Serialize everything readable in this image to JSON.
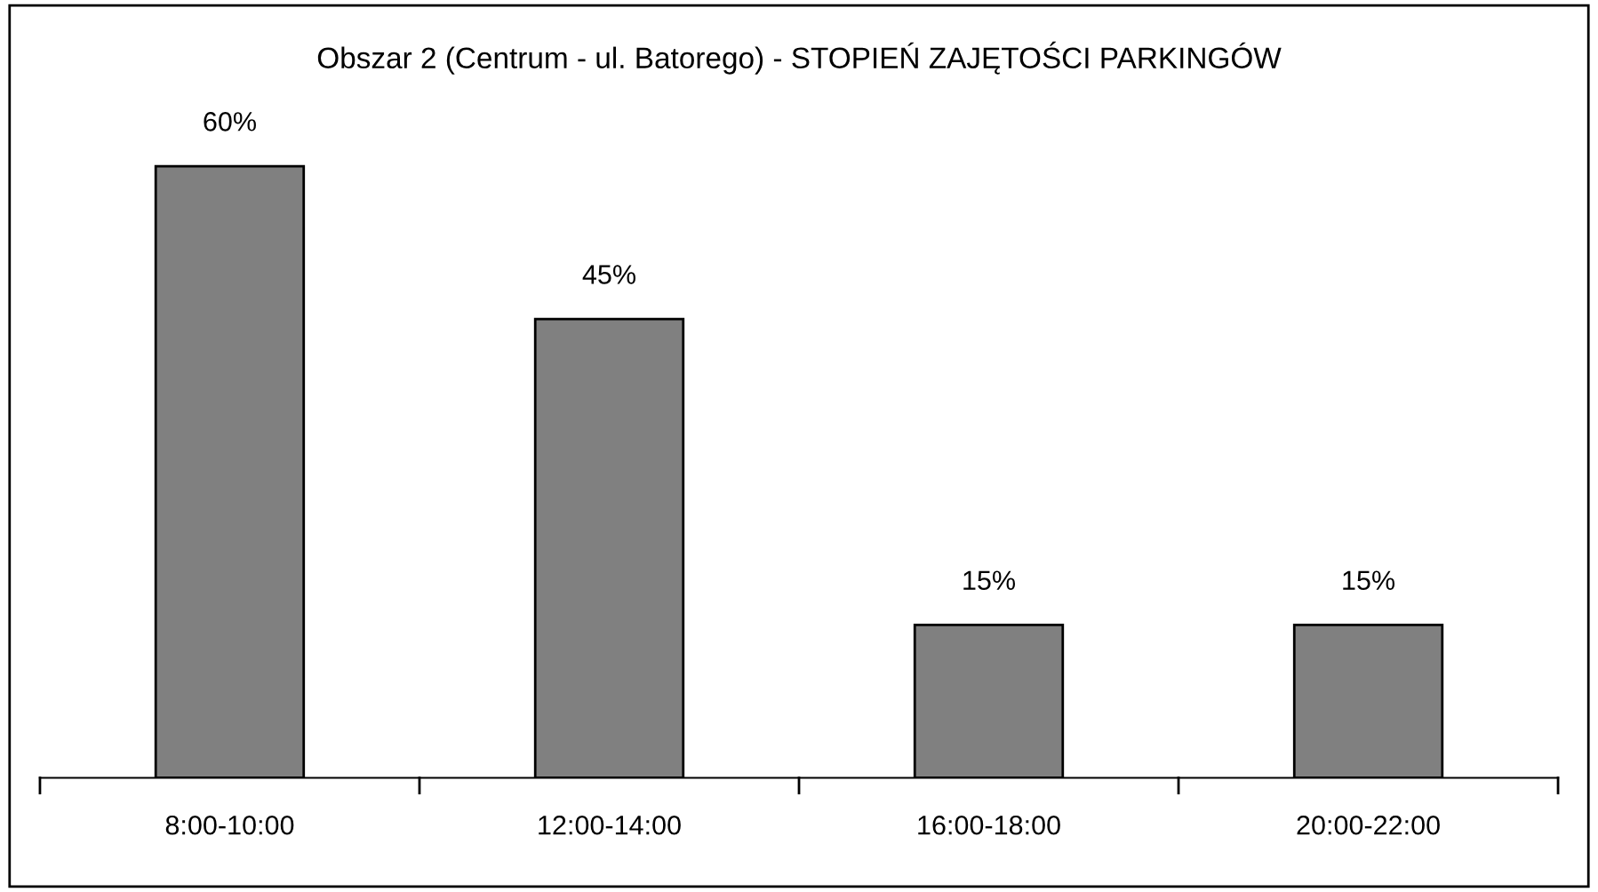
{
  "chart_data": {
    "type": "bar",
    "title": "Obszar 2 (Centrum - ul. Batorego) - STOPIEŃ ZAJĘTOŚCI PARKINGÓW",
    "categories": [
      "8:00-10:00",
      "12:00-14:00",
      "16:00-18:00",
      "20:00-22:00"
    ],
    "values": [
      60,
      45,
      15,
      15
    ],
    "value_labels": [
      "60%",
      "45%",
      "15%",
      "15%"
    ],
    "color": "#808080"
  }
}
